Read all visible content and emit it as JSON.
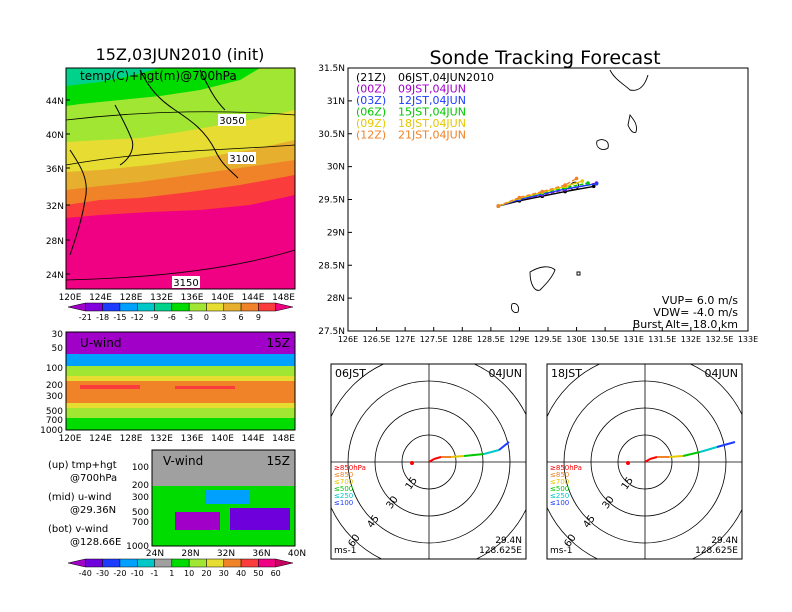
{
  "left": {
    "title": "15Z,03JUN2010 (init)",
    "map_label": "temp(C)+hgt(m)@700hPa",
    "lat_ticks": [
      "44N",
      "40N",
      "36N",
      "32N",
      "28N",
      "24N"
    ],
    "lon_ticks": [
      "120E",
      "124E",
      "128E",
      "132E",
      "136E",
      "140E",
      "144E",
      "148E"
    ],
    "contour_labels": [
      "3050",
      "3100",
      "3150"
    ],
    "temp_colorbar": [
      "-21",
      "-18",
      "-15",
      "-12",
      "-9",
      "-6",
      "-3",
      "0",
      "3",
      "6",
      "9"
    ],
    "temp_colors": [
      "#a000c8",
      "#8200dc",
      "#1e3cff",
      "#00a0ff",
      "#00c8c8",
      "#00d28c",
      "#00dc00",
      "#a0e632",
      "#e6dc32",
      "#e6af2d",
      "#f08228",
      "#fa3c3c",
      "#f00082"
    ],
    "uwind": {
      "label": "U-wind",
      "time": "15Z",
      "p_ticks": [
        "30",
        "50",
        "100",
        "200",
        "300",
        "500",
        "700",
        "1000"
      ],
      "lon_ticks": [
        "120E",
        "124E",
        "128E",
        "132E",
        "136E",
        "140E",
        "144E",
        "148E"
      ]
    },
    "vwind": {
      "label": "V-wind",
      "time": "15Z",
      "p_ticks": [
        "100",
        "200",
        "300",
        "500",
        "700",
        "1000"
      ],
      "lat_ticks": [
        "24N",
        "28N",
        "32N",
        "36N",
        "40N"
      ]
    },
    "notes": [
      {
        "a": "(up) tmp+hgt",
        "b": "@700hPa"
      },
      {
        "a": "(mid) u-wind",
        "b": "@29.36N"
      },
      {
        "a": "(bot) v-wind",
        "b": "@128.66E"
      }
    ],
    "wind_colorbar": [
      "-40",
      "-30",
      "-20",
      "-10",
      "-1",
      "1",
      "10",
      "20",
      "30",
      "40",
      "50",
      "60"
    ],
    "wind_colors": [
      "#a000c8",
      "#6e00dc",
      "#1e3cff",
      "#00a0ff",
      "#00c8c8",
      "#a0a0a0",
      "#00dc00",
      "#a0e632",
      "#e6dc32",
      "#f08228",
      "#fa3c3c",
      "#f00082",
      "#c80064"
    ]
  },
  "track": {
    "title": "Sonde Tracking Forecast",
    "legend": [
      {
        "code": "(21Z)",
        "time": "06JST,04JUN2010",
        "color": "#000000"
      },
      {
        "code": "(00Z)",
        "time": "09JST,04JUN",
        "color": "#a000c8"
      },
      {
        "code": "(03Z)",
        "time": "12JST,04JUN",
        "color": "#1e3cff"
      },
      {
        "code": "(06Z)",
        "time": "15JST,04JUN",
        "color": "#00c800"
      },
      {
        "code": "(09Z)",
        "time": "18JST,04JUN",
        "color": "#e6c800"
      },
      {
        "code": "(12Z)",
        "time": "21JST,04JUN",
        "color": "#f08228"
      }
    ],
    "lat_ticks": [
      "31.5N",
      "31N",
      "30.5N",
      "30N",
      "29.5N",
      "29N",
      "28.5N",
      "28N",
      "27.5N"
    ],
    "lon_ticks": [
      "126E",
      "126.5E",
      "127E",
      "127.5E",
      "128E",
      "128.5E",
      "129E",
      "129.5E",
      "130E",
      "130.5E",
      "131E",
      "131.5E",
      "132E",
      "132.5E",
      "133E"
    ],
    "params": [
      "VUP= 6.0 m/s",
      "VDW= -4.0 m/s",
      "Burst Alt= 18.0 km"
    ]
  },
  "chart_data": [
    {
      "type": "line",
      "title": "Sonde Tracking Forecast",
      "xlim": [
        126,
        133
      ],
      "ylim": [
        27.5,
        31.5
      ],
      "series": [
        {
          "name": "(21Z) 06JST,04JUN2010",
          "points": [
            [
              128.63,
              29.4
            ],
            [
              129.0,
              29.48
            ],
            [
              129.4,
              29.55
            ],
            [
              129.8,
              29.62
            ],
            [
              130.3,
              29.7
            ]
          ]
        },
        {
          "name": "(00Z) 09JST,04JUN",
          "points": [
            [
              128.63,
              29.4
            ],
            [
              129.0,
              29.5
            ],
            [
              129.4,
              29.57
            ],
            [
              129.8,
              29.65
            ],
            [
              130.35,
              29.75
            ]
          ]
        },
        {
          "name": "(03Z) 12JST,04JUN",
          "points": [
            [
              128.63,
              29.4
            ],
            [
              129.0,
              29.5
            ],
            [
              129.4,
              29.58
            ],
            [
              129.8,
              29.66
            ],
            [
              130.35,
              29.74
            ]
          ]
        },
        {
          "name": "(06Z) 15JST,04JUN",
          "points": [
            [
              128.63,
              29.4
            ],
            [
              129.0,
              29.52
            ],
            [
              129.4,
              29.6
            ],
            [
              129.8,
              29.68
            ],
            [
              130.2,
              29.75
            ]
          ]
        },
        {
          "name": "(09Z) 18JST,04JUN",
          "points": [
            [
              128.63,
              29.4
            ],
            [
              129.0,
              29.52
            ],
            [
              129.4,
              29.61
            ],
            [
              129.8,
              29.7
            ],
            [
              130.1,
              29.78
            ]
          ]
        },
        {
          "name": "(12Z) 21JST,04JUN",
          "points": [
            [
              128.63,
              29.4
            ],
            [
              129.0,
              29.53
            ],
            [
              129.4,
              29.62
            ],
            [
              129.8,
              29.72
            ],
            [
              130.0,
              29.82
            ]
          ]
        }
      ]
    }
  ],
  "hodo": [
    {
      "time": "06JST",
      "date": "04JUN",
      "rings": [
        "15",
        "30",
        "45",
        "60"
      ],
      "levels": [
        "≥850hPa",
        "≤850",
        "≤700",
        "≤500",
        "≤250",
        "≤100"
      ],
      "lat": "29.4N",
      "lon": "128.625E",
      "unit": "ms-1"
    },
    {
      "time": "18JST",
      "date": "04JUN",
      "rings": [
        "15",
        "30",
        "45",
        "60"
      ],
      "levels": [
        "≥850hPa",
        "≤850",
        "≤700",
        "≤500",
        "≤250",
        "≤100"
      ],
      "lat": "29.4N",
      "lon": "128.625E",
      "unit": "ms-1"
    }
  ],
  "level_colors": [
    "#ff0000",
    "#f08228",
    "#e6c800",
    "#00c800",
    "#00c8c8",
    "#1e3cff"
  ]
}
